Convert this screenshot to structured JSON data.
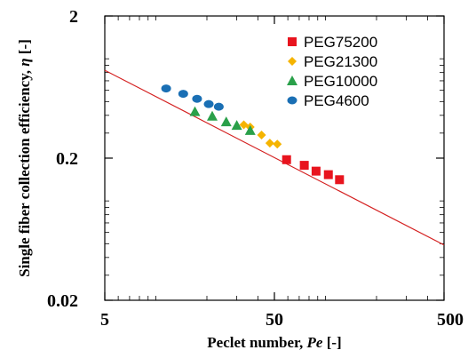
{
  "chart_data": {
    "type": "scatter",
    "title": "",
    "xlabel": {
      "prefix": "Peclet number, ",
      "italic": "Pe",
      "suffix": " [-]"
    },
    "ylabel": {
      "prefix": "Single fiber collection efficiency, ",
      "italic": "η",
      "suffix": " [-]"
    },
    "xscale": "log",
    "yscale": "log",
    "xlim": [
      5,
      500
    ],
    "ylim": [
      0.02,
      2
    ],
    "xticks": [
      {
        "value": 5,
        "label": "5"
      },
      {
        "value": 50,
        "label": "50"
      },
      {
        "value": 500,
        "label": "500"
      }
    ],
    "yticks": [
      {
        "value": 0.02,
        "label": "0.02"
      },
      {
        "value": 0.2,
        "label": "0.2"
      },
      {
        "value": 2,
        "label": "2"
      }
    ],
    "grid": false,
    "legend_position": "top-right",
    "series": [
      {
        "name": "PEG75200",
        "color": "#e8141e",
        "marker": "square",
        "points": [
          {
            "x": 59,
            "y": 0.195
          },
          {
            "x": 75,
            "y": 0.178
          },
          {
            "x": 88,
            "y": 0.162
          },
          {
            "x": 104,
            "y": 0.153
          },
          {
            "x": 121,
            "y": 0.141
          }
        ]
      },
      {
        "name": "PEG21300",
        "color": "#f5b400",
        "marker": "diamond",
        "points": [
          {
            "x": 33,
            "y": 0.343
          },
          {
            "x": 36,
            "y": 0.331
          },
          {
            "x": 42,
            "y": 0.291
          },
          {
            "x": 47,
            "y": 0.255
          },
          {
            "x": 52,
            "y": 0.251
          }
        ]
      },
      {
        "name": "PEG10000",
        "color": "#2aa04a",
        "marker": "triangle",
        "points": [
          {
            "x": 17,
            "y": 0.425
          },
          {
            "x": 21.5,
            "y": 0.395
          },
          {
            "x": 26,
            "y": 0.36
          },
          {
            "x": 30,
            "y": 0.34
          },
          {
            "x": 36,
            "y": 0.313
          }
        ]
      },
      {
        "name": "PEG4600",
        "color": "#1a6fb4",
        "marker": "circle",
        "points": [
          {
            "x": 11.5,
            "y": 0.618
          },
          {
            "x": 14.5,
            "y": 0.567
          },
          {
            "x": 17.5,
            "y": 0.523
          },
          {
            "x": 20.5,
            "y": 0.48
          },
          {
            "x": 23.5,
            "y": 0.46
          }
        ]
      }
    ],
    "fit_line": {
      "color": "#d42020",
      "points": [
        {
          "x": 5,
          "y": 0.83
        },
        {
          "x": 500,
          "y": 0.049
        }
      ]
    }
  }
}
